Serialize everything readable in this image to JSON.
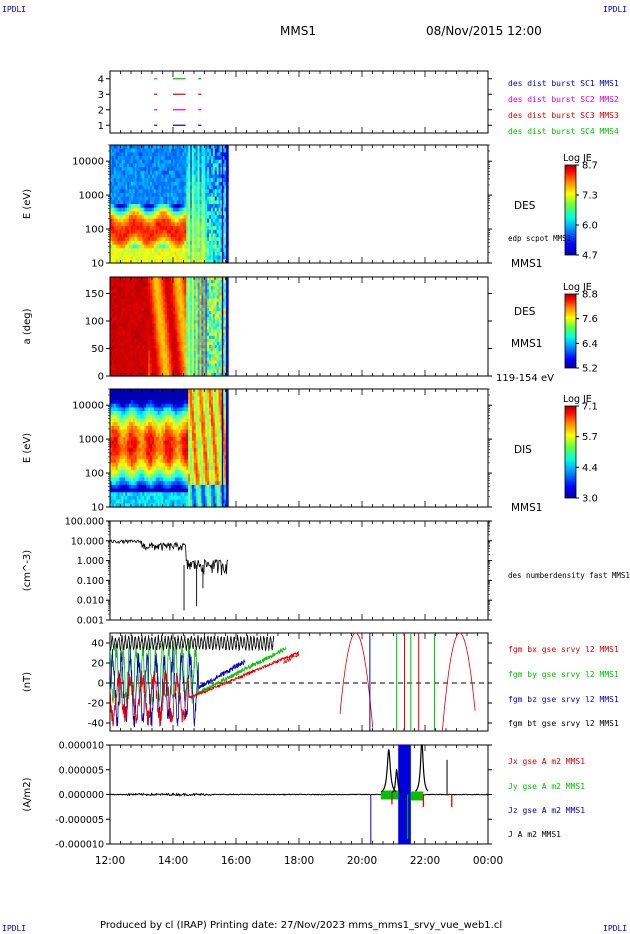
{
  "corner_labels": {
    "tl": "IPDLI",
    "tr": "IPDLI",
    "bl": "IPDLI",
    "br": "IPDLI"
  },
  "header": {
    "mission": "MMS1",
    "date": "08/Nov/2015 12:00"
  },
  "footer": {
    "text": "Produced by cl (IRAP)   Printing date: 27/Nov/2023   mms_mms1_srvy_vue_web1.cl"
  },
  "time_axis": {
    "ticks": [
      "12:00",
      "14:00",
      "16:00",
      "18:00",
      "20:00",
      "22:00",
      "00:00"
    ],
    "range_hours": [
      12,
      24
    ]
  },
  "colors": {
    "c1": "#0000c0",
    "c2": "#e000e0",
    "c3": "#e00000",
    "c4": "#00c000",
    "black": "#000000"
  },
  "chart_data": [
    {
      "type": "line",
      "id": "burst",
      "ylabel": "",
      "yticks": [
        "1",
        "2",
        "3",
        "4"
      ],
      "ylim": [
        0.5,
        4.5
      ],
      "series": [
        {
          "name": "des dist burst SC1 MMS1",
          "y": 1,
          "segments": [
            [
              13.4,
              13.5
            ],
            [
              14.0,
              14.4
            ],
            [
              14.8,
              14.9
            ]
          ],
          "color": "#0000c0"
        },
        {
          "name": "des dist burst SC2 MMS2",
          "y": 2,
          "segments": [
            [
              13.4,
              13.5
            ],
            [
              14.0,
              14.4
            ],
            [
              14.8,
              14.9
            ]
          ],
          "color": "#e000e0"
        },
        {
          "name": "des dist burst SC3 MMS3",
          "y": 3,
          "segments": [
            [
              13.4,
              13.5
            ],
            [
              14.0,
              14.4
            ],
            [
              14.8,
              14.9
            ]
          ],
          "color": "#e00000"
        },
        {
          "name": "des dist burst SC4 MMS4",
          "y": 4,
          "segments": [
            [
              13.4,
              13.5
            ],
            [
              14.0,
              14.4
            ],
            [
              14.8,
              14.9
            ]
          ],
          "color": "#00c000"
        }
      ]
    },
    {
      "type": "heatmap",
      "id": "des_energy",
      "ylabel": "E (eV)",
      "yscale": "log",
      "yticks": [
        "10",
        "100",
        "1000",
        "10000"
      ],
      "ylim": [
        10,
        30000
      ],
      "right_labels": [
        "DES",
        "edp scpot MMS1",
        "MMS1"
      ],
      "colorbar": {
        "title": "Log JE",
        "ticks": [
          "8.7",
          "7.3",
          "6.0",
          "4.7"
        ],
        "range": [
          4.7,
          8.7
        ]
      },
      "data_extent_hours": [
        12.0,
        15.75
      ]
    },
    {
      "type": "heatmap",
      "id": "des_pitch",
      "ylabel": "a (deg)",
      "yticks": [
        "0",
        "50",
        "100",
        "150"
      ],
      "ylim": [
        0,
        180
      ],
      "right_labels": [
        "DES",
        "MMS1",
        "119-154 eV"
      ],
      "colorbar": {
        "title": "Log JE",
        "ticks": [
          "8.8",
          "7.6",
          "6.4",
          "5.2"
        ],
        "range": [
          5.2,
          8.8
        ]
      },
      "data_extent_hours": [
        12.0,
        15.75
      ]
    },
    {
      "type": "heatmap",
      "id": "dis_energy",
      "ylabel": "E (eV)",
      "yscale": "log",
      "yticks": [
        "10",
        "100",
        "1000",
        "10000"
      ],
      "ylim": [
        10,
        30000
      ],
      "right_labels": [
        "DIS",
        "MMS1"
      ],
      "colorbar": {
        "title": "Log JE",
        "ticks": [
          "7.1",
          "5.7",
          "4.4",
          "3.0"
        ],
        "range": [
          3.0,
          7.1
        ]
      },
      "data_extent_hours": [
        12.0,
        15.75
      ]
    },
    {
      "type": "line",
      "id": "density",
      "ylabel": "(cm^-3)",
      "yscale": "log",
      "yticks": [
        "0.001",
        "0.010",
        "0.100",
        "1.000",
        "10.000",
        "100.000"
      ],
      "ylim": [
        0.001,
        100
      ],
      "series": [
        {
          "name": "des numberdensity fast MMS1",
          "color": "#000000"
        }
      ],
      "data_extent_hours": [
        12.0,
        15.75
      ]
    },
    {
      "type": "line",
      "id": "fgm",
      "ylabel": "(nT)",
      "yticks": [
        "-40",
        "-20",
        "0",
        "20",
        "40"
      ],
      "ylim": [
        -48,
        50
      ],
      "series": [
        {
          "name": "fgm bx gse srvy l2 MMS1",
          "color": "#e00000"
        },
        {
          "name": "fgm by gse srvy l2 MMS1",
          "color": "#00c000"
        },
        {
          "name": "fgm bz gse srvy l2 MMS1",
          "color": "#0000c0"
        },
        {
          "name": "fgm bt gse srvy l2 MMS1",
          "color": "#000000"
        }
      ]
    },
    {
      "type": "line",
      "id": "current",
      "ylabel": "(A/m2)",
      "yticks": [
        "-0.000010",
        "-0.000005",
        "0.000000",
        "0.000005",
        "0.000010"
      ],
      "ylim": [
        -1e-05,
        1e-05
      ],
      "series": [
        {
          "name": "Jx gse A m2 MMS1",
          "color": "#e00000"
        },
        {
          "name": "Jy gse A m2 MMS1",
          "color": "#00c000"
        },
        {
          "name": "Jz gse A m2 MMS1",
          "color": "#0000c0"
        },
        {
          "name": "J A m2 MMS1",
          "color": "#000000"
        }
      ]
    }
  ]
}
